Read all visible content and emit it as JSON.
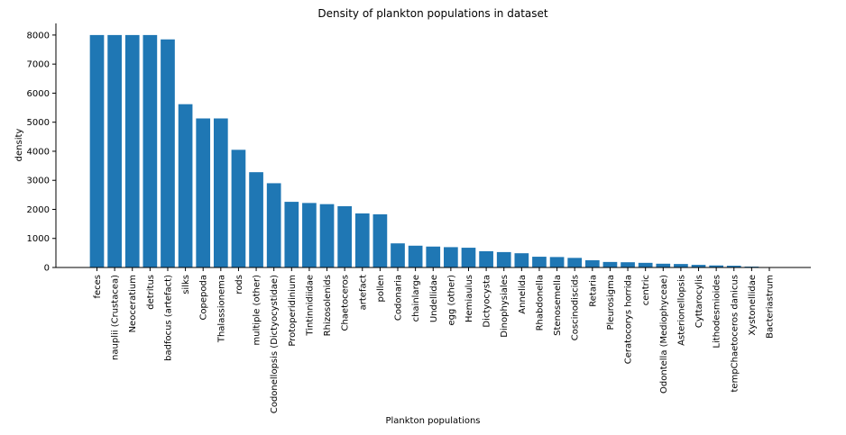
{
  "chart_data": {
    "type": "bar",
    "title": "Density of plankton populations in dataset",
    "xlabel": "Plankton populations",
    "ylabel": "density",
    "ylim": [
      0,
      8400
    ],
    "yticks": [
      0,
      1000,
      2000,
      3000,
      4000,
      5000,
      6000,
      7000,
      8000
    ],
    "ytick_labels": [
      "0",
      "1000",
      "2000",
      "3000",
      "4000",
      "5000",
      "6000",
      "7000",
      "8000"
    ],
    "grid": false,
    "bar_color": "#1f77b4",
    "categories": [
      "feces",
      "nauplii (Crustacea)",
      "Neoceratium",
      "detritus",
      "badfocus (artefact)",
      "silks",
      "Copepoda",
      "Thalassionema",
      "rods",
      "multiple (other)",
      "Codonellopsis (Dictyocystidae)",
      "Protoperidinium",
      "Tintinnidiidae",
      "Rhizosolenids",
      "Chaetoceros",
      "artefact",
      "pollen",
      "Codonaria",
      "chainlarge",
      "Undellidae",
      "egg (other)",
      "Hemiaulus",
      "Dictyocysta",
      "Dinophysiales",
      "Annelida",
      "Rhabdonella",
      "Stenosemella",
      "Coscinodiscids",
      "Retaria",
      "Pleurosigma",
      "Ceratocorys horrida",
      "centric",
      "Odontella (Mediophyceae)",
      "Asterionellopsis",
      "Cyttarocylis",
      "Lithodesmioides",
      "tempChaetoceros danicus",
      "Xystonellidae",
      "Bacteriastrum"
    ],
    "values": [
      8000,
      8000,
      8000,
      8000,
      7850,
      5620,
      5130,
      5130,
      4050,
      3280,
      2900,
      2260,
      2220,
      2180,
      2110,
      1860,
      1830,
      830,
      750,
      720,
      700,
      680,
      560,
      530,
      490,
      370,
      360,
      330,
      250,
      190,
      180,
      160,
      130,
      120,
      90,
      70,
      60,
      30,
      10
    ]
  }
}
